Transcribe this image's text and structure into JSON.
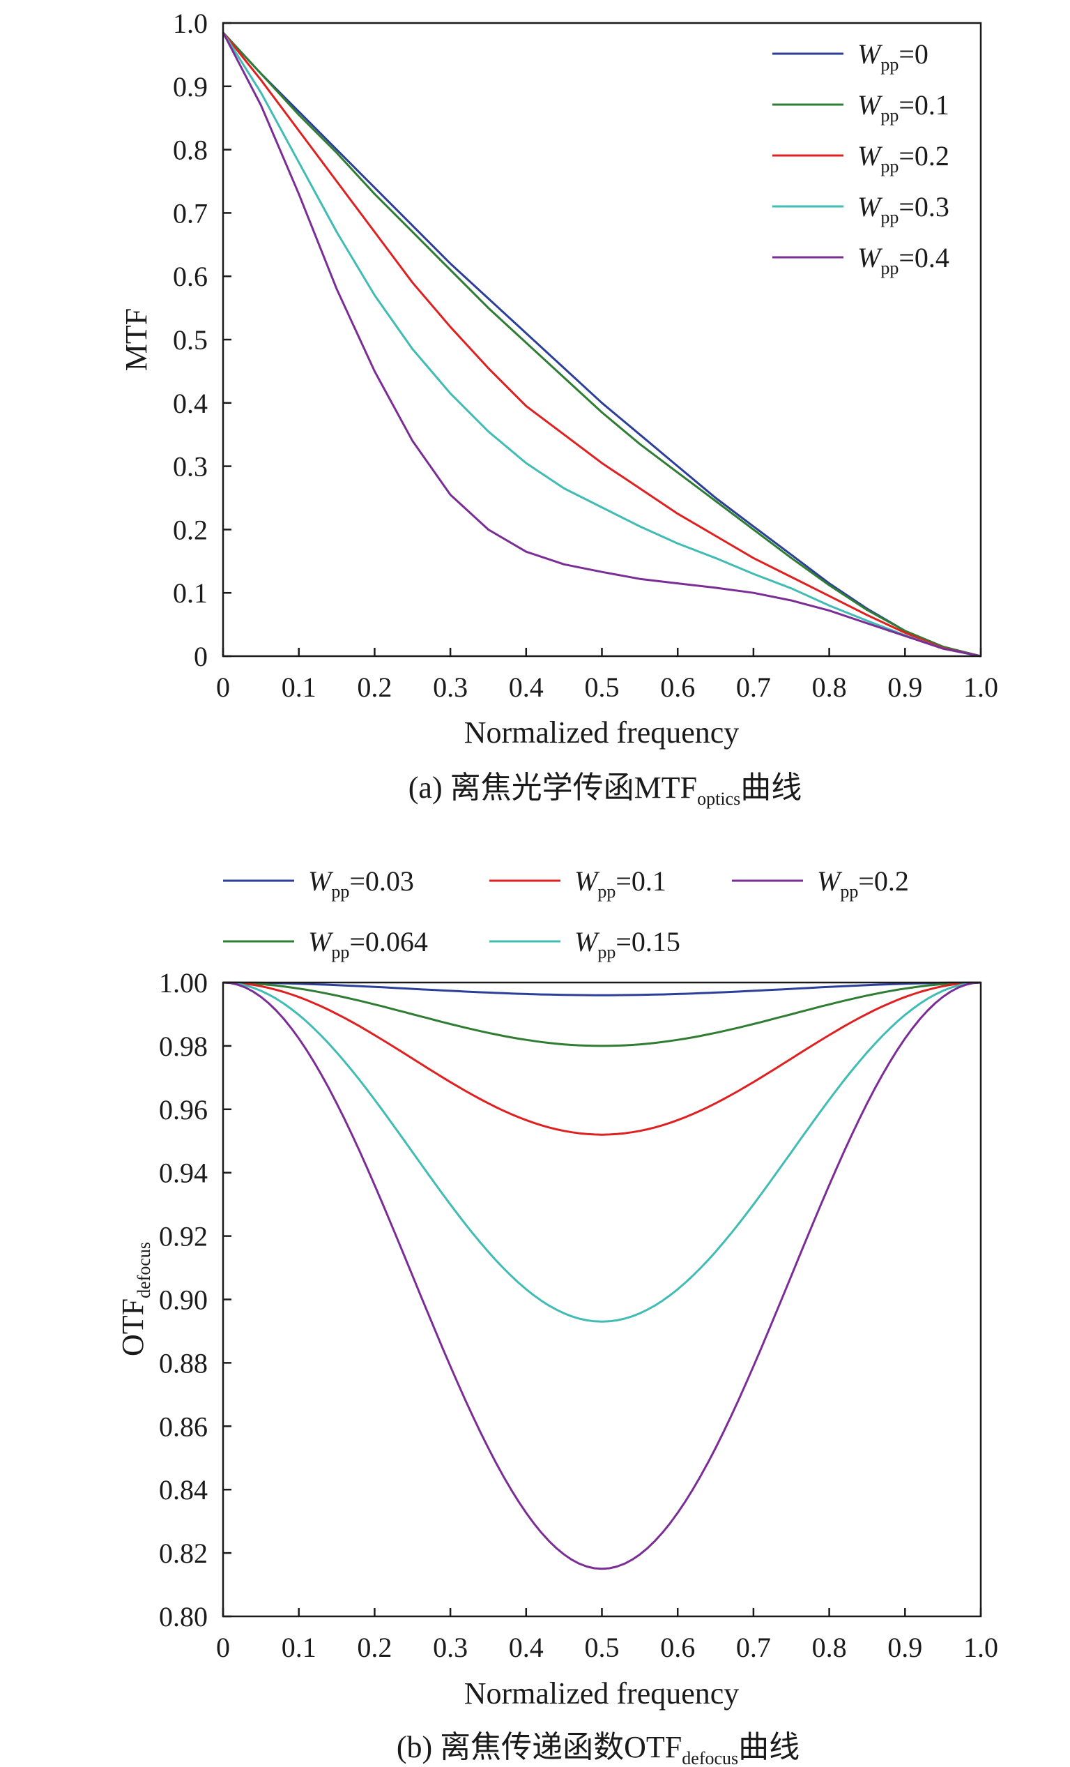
{
  "chart_data": [
    {
      "id": "a",
      "type": "line",
      "caption_main": "(a) 离焦光学传函MTF",
      "caption_sub": "optics",
      "caption_tail": "曲线",
      "xlabel": "Normalized frequency",
      "ylabel": "MTF",
      "xlim": [
        0,
        1
      ],
      "ylim": [
        0,
        1
      ],
      "xticks": [
        "0",
        "0.1",
        "0.2",
        "0.3",
        "0.4",
        "0.5",
        "0.6",
        "0.7",
        "0.8",
        "0.9",
        "1.0"
      ],
      "yticks": [
        "0",
        "0.1",
        "0.2",
        "0.3",
        "0.4",
        "0.5",
        "0.6",
        "0.7",
        "0.8",
        "0.9",
        "1.0"
      ],
      "legend_position": "top-right",
      "grid": false,
      "x": [
        0,
        0.05,
        0.1,
        0.15,
        0.2,
        0.25,
        0.3,
        0.35,
        0.4,
        0.45,
        0.5,
        0.55,
        0.6,
        0.65,
        0.7,
        0.75,
        0.8,
        0.85,
        0.9,
        0.95,
        1.0
      ],
      "series": [
        {
          "name_main": "W",
          "name_sub": "pp",
          "name_value": "=0",
          "color": "#2b3f9a",
          "values": [
            0.985,
            0.92,
            0.86,
            0.8,
            0.74,
            0.68,
            0.62,
            0.565,
            0.51,
            0.455,
            0.4,
            0.35,
            0.3,
            0.25,
            0.205,
            0.16,
            0.115,
            0.075,
            0.04,
            0.015,
            0.0
          ]
        },
        {
          "name_main": "W",
          "name_sub": "pp",
          "name_value": "=0.1",
          "color": "#2e7d32",
          "values": [
            0.985,
            0.92,
            0.855,
            0.795,
            0.73,
            0.67,
            0.61,
            0.55,
            0.495,
            0.44,
            0.385,
            0.335,
            0.29,
            0.245,
            0.2,
            0.155,
            0.112,
            0.073,
            0.04,
            0.015,
            0.0
          ]
        },
        {
          "name_main": "W",
          "name_sub": "pp",
          "name_value": "=0.2",
          "color": "#e02020",
          "values": [
            0.985,
            0.91,
            0.83,
            0.75,
            0.67,
            0.59,
            0.52,
            0.455,
            0.395,
            0.35,
            0.305,
            0.265,
            0.225,
            0.19,
            0.155,
            0.125,
            0.095,
            0.065,
            0.037,
            0.013,
            0.0
          ]
        },
        {
          "name_main": "W",
          "name_sub": "pp",
          "name_value": "=0.3",
          "color": "#40bcb4",
          "values": [
            0.985,
            0.89,
            0.78,
            0.67,
            0.57,
            0.485,
            0.415,
            0.355,
            0.305,
            0.265,
            0.235,
            0.205,
            0.178,
            0.155,
            0.13,
            0.107,
            0.08,
            0.056,
            0.033,
            0.012,
            0.0
          ]
        },
        {
          "name_main": "W",
          "name_sub": "pp",
          "name_value": "=0.4",
          "color": "#7b2d96",
          "values": [
            0.985,
            0.87,
            0.73,
            0.58,
            0.45,
            0.34,
            0.255,
            0.2,
            0.165,
            0.145,
            0.133,
            0.122,
            0.115,
            0.108,
            0.1,
            0.088,
            0.072,
            0.052,
            0.032,
            0.012,
            0.0
          ]
        }
      ]
    },
    {
      "id": "b",
      "type": "line",
      "caption_main": "(b) 离焦传递函数OTF",
      "caption_sub": "defocus",
      "caption_tail": "曲线",
      "xlabel": "Normalized frequency",
      "ylabel_main": "OTF",
      "ylabel_sub": "defocus",
      "xlim": [
        0,
        1
      ],
      "ylim": [
        0.8,
        1.0
      ],
      "xticks": [
        "0",
        "0.1",
        "0.2",
        "0.3",
        "0.4",
        "0.5",
        "0.6",
        "0.7",
        "0.8",
        "0.9",
        "1.0"
      ],
      "yticks": [
        "0.80",
        "0.82",
        "0.84",
        "0.86",
        "0.88",
        "0.90",
        "0.92",
        "0.94",
        "0.96",
        "0.98",
        "1.00"
      ],
      "legend_position": "top",
      "grid": false,
      "curve_shape": "symmetric sin^2 dip minimum at x = 0.5",
      "series": [
        {
          "name_main": "W",
          "name_sub": "pp",
          "name_value": "=0.03",
          "color": "#2b3f9a",
          "min_value": 0.996
        },
        {
          "name_main": "W",
          "name_sub": "pp",
          "name_value": "=0.064",
          "color": "#2e7d32",
          "min_value": 0.98
        },
        {
          "name_main": "W",
          "name_sub": "pp",
          "name_value": "=0.1",
          "color": "#e02020",
          "min_value": 0.952
        },
        {
          "name_main": "W",
          "name_sub": "pp",
          "name_value": "=0.15",
          "color": "#40bcb4",
          "min_value": 0.893
        },
        {
          "name_main": "W",
          "name_sub": "pp",
          "name_value": "=0.2",
          "color": "#7b2d96",
          "min_value": 0.815
        }
      ]
    }
  ]
}
